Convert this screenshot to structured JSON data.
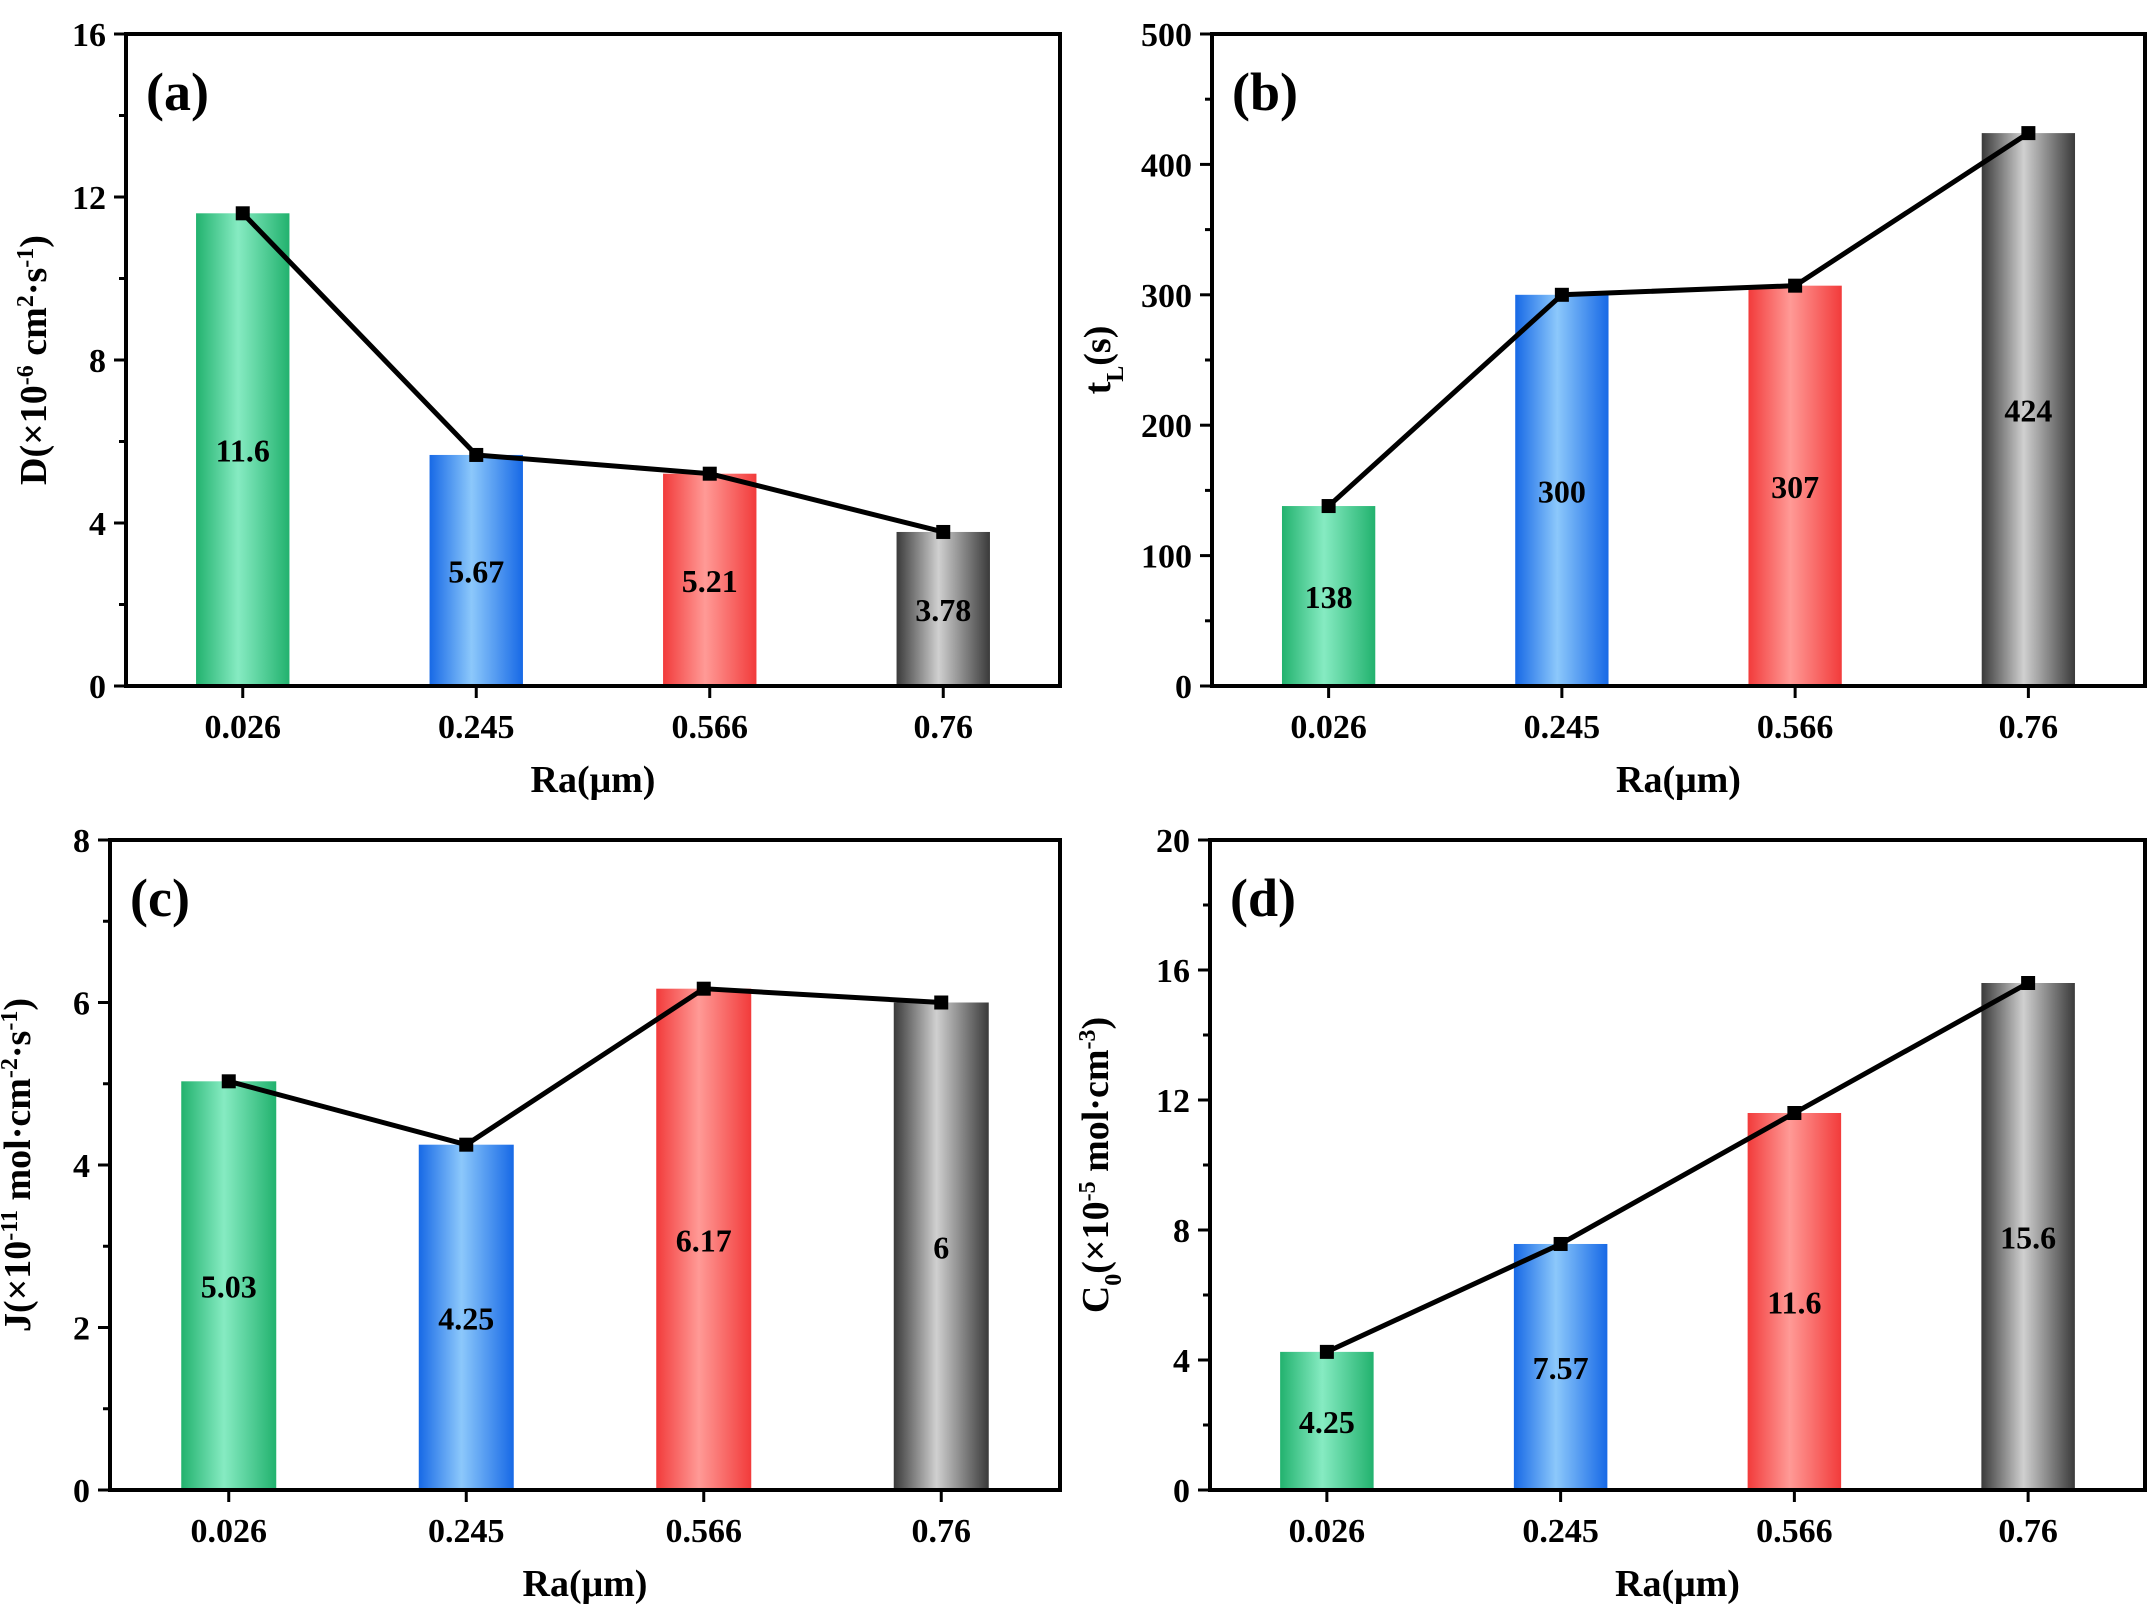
{
  "colors": {
    "green": "#22b26e",
    "green_light": "#86ebc2",
    "blue": "#1769e6",
    "blue_light": "#8cc8fb",
    "red": "#f23b3b",
    "red_light": "#ff9a96",
    "gray": "#3a3a3a",
    "gray_light": "#d0d0d0",
    "line": "#000000"
  },
  "chart_data": [
    {
      "type": "bar",
      "panel": "(a)",
      "categories": [
        "0.026",
        "0.245",
        "0.566",
        "0.76"
      ],
      "values": [
        11.6,
        5.67,
        5.21,
        3.78
      ],
      "value_labels": [
        "11.6",
        "5.67",
        "5.21",
        "3.78"
      ],
      "overlay": "line",
      "xlabel": "Ra(μm)",
      "ylabel": {
        "pre": "D(×10",
        "sup1": "-6",
        "mid": " cm",
        "sup2": "2",
        "mid2": "·s",
        "sup3": "-1",
        "post": ")"
      },
      "ylim": [
        0,
        16
      ],
      "yticks": [
        0,
        4,
        8,
        12,
        16
      ],
      "ytick_labels": [
        "0",
        "4",
        "8",
        "12",
        "16"
      ],
      "grid": false
    },
    {
      "type": "bar",
      "panel": "(b)",
      "categories": [
        "0.026",
        "0.245",
        "0.566",
        "0.76"
      ],
      "values": [
        138,
        300,
        307,
        424
      ],
      "value_labels": [
        "138",
        "300",
        "307",
        "424"
      ],
      "overlay": "line",
      "xlabel": "Ra(μm)",
      "ylabel": {
        "pre": "t",
        "sub": "L",
        "post": "(s)"
      },
      "ylim": [
        0,
        500
      ],
      "yticks": [
        0,
        100,
        200,
        300,
        400,
        500
      ],
      "ytick_labels": [
        "0",
        "100",
        "200",
        "300",
        "400",
        "500"
      ],
      "grid": false
    },
    {
      "type": "bar",
      "panel": "(c)",
      "categories": [
        "0.026",
        "0.245",
        "0.566",
        "0.76"
      ],
      "values": [
        5.03,
        4.25,
        6.17,
        6
      ],
      "value_labels": [
        "5.03",
        "4.25",
        "6.17",
        "6"
      ],
      "overlay": "line",
      "xlabel": "Ra(μm)",
      "ylabel": {
        "pre": "J(×10",
        "sup1": "-11",
        "mid": " mol·cm",
        "sup2": "-2",
        "mid2": "·s",
        "sup3": "-1",
        "post": ")"
      },
      "ylim": [
        0,
        8
      ],
      "yticks": [
        0,
        2,
        4,
        6,
        8
      ],
      "ytick_labels": [
        "0",
        "2",
        "4",
        "6",
        "8"
      ],
      "grid": false
    },
    {
      "type": "bar",
      "panel": "(d)",
      "categories": [
        "0.026",
        "0.245",
        "0.566",
        "0.76"
      ],
      "values": [
        4.25,
        7.57,
        11.6,
        15.6
      ],
      "value_labels": [
        "4.25",
        "7.57",
        "11.6",
        "15.6"
      ],
      "overlay": "line",
      "xlabel": "Ra(μm)",
      "ylabel": {
        "pre": "C",
        "sub": "0",
        "mid": "(×10",
        "sup1": "-5",
        "mid2": " mol·cm",
        "sup2": "-3",
        "post": ")"
      },
      "ylim": [
        0,
        20
      ],
      "yticks": [
        0,
        4,
        8,
        12,
        16,
        20
      ],
      "ytick_labels": [
        "0",
        "4",
        "8",
        "12",
        "16",
        "20"
      ],
      "grid": false
    }
  ]
}
